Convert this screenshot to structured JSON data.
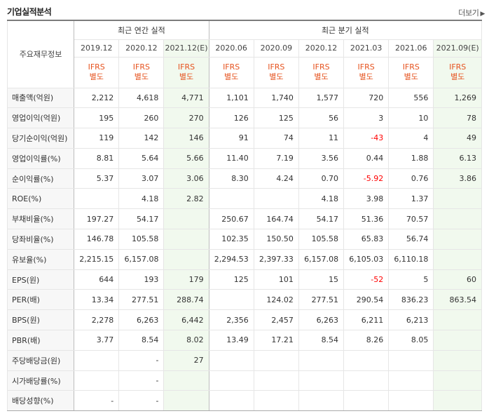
{
  "header": {
    "title": "기업실적분석",
    "more_label": "더보기",
    "more_arrow": "▶"
  },
  "table": {
    "label_header": "주요재무정보",
    "annual_group": "최근 연간 실적",
    "quarter_group": "최근 분기 실적",
    "annual_periods": [
      "2019.12",
      "2020.12",
      "2021.12(E)"
    ],
    "quarter_periods": [
      "2020.06",
      "2020.09",
      "2020.12",
      "2021.03",
      "2021.06",
      "2021.09(E)"
    ],
    "ifrs_line1": "IFRS",
    "ifrs_line2": "별도",
    "rows": [
      {
        "label": "매출액(억원)",
        "group_start": true,
        "values": [
          "2,212",
          "4,618",
          "4,771",
          "1,101",
          "1,740",
          "1,577",
          "720",
          "556",
          "1,269"
        ]
      },
      {
        "label": "영업이익(억원)",
        "group_start": false,
        "values": [
          "195",
          "260",
          "270",
          "126",
          "125",
          "56",
          "3",
          "10",
          "78"
        ]
      },
      {
        "label": "당기순이익(억원)",
        "group_start": false,
        "values": [
          "119",
          "142",
          "146",
          "91",
          "74",
          "11",
          "-43",
          "4",
          "49"
        ]
      },
      {
        "label": "영업이익률(%)",
        "group_start": true,
        "values": [
          "8.81",
          "5.64",
          "5.66",
          "11.40",
          "7.19",
          "3.56",
          "0.44",
          "1.88",
          "6.13"
        ]
      },
      {
        "label": "순이익률(%)",
        "group_start": false,
        "values": [
          "5.37",
          "3.07",
          "3.06",
          "8.30",
          "4.24",
          "0.70",
          "-5.92",
          "0.76",
          "3.86"
        ]
      },
      {
        "label": "ROE(%)",
        "group_start": false,
        "values": [
          "",
          "4.18",
          "2.82",
          "",
          "",
          "4.18",
          "3.98",
          "1.37",
          ""
        ]
      },
      {
        "label": "부채비율(%)",
        "group_start": true,
        "values": [
          "197.27",
          "54.17",
          "",
          "250.67",
          "164.74",
          "54.17",
          "51.36",
          "70.57",
          ""
        ]
      },
      {
        "label": "당좌비율(%)",
        "group_start": false,
        "values": [
          "146.78",
          "105.58",
          "",
          "102.35",
          "150.50",
          "105.58",
          "65.83",
          "56.74",
          ""
        ]
      },
      {
        "label": "유보율(%)",
        "group_start": false,
        "values": [
          "2,215.15",
          "6,157.08",
          "",
          "2,294.53",
          "2,397.33",
          "6,157.08",
          "6,105.03",
          "6,110.18",
          ""
        ]
      },
      {
        "label": "EPS(원)",
        "group_start": true,
        "values": [
          "644",
          "193",
          "179",
          "125",
          "101",
          "15",
          "-52",
          "5",
          "60"
        ]
      },
      {
        "label": "PER(배)",
        "group_start": false,
        "values": [
          "13.34",
          "277.51",
          "288.74",
          "",
          "124.02",
          "277.51",
          "290.54",
          "836.23",
          "863.54"
        ]
      },
      {
        "label": "BPS(원)",
        "group_start": false,
        "values": [
          "2,278",
          "6,263",
          "6,442",
          "2,356",
          "2,457",
          "6,263",
          "6,211",
          "6,213",
          ""
        ]
      },
      {
        "label": "PBR(배)",
        "group_start": false,
        "values": [
          "3.77",
          "8.54",
          "8.02",
          "13.49",
          "17.21",
          "8.54",
          "8.26",
          "8.05",
          ""
        ]
      },
      {
        "label": "주당배당금(원)",
        "group_start": true,
        "values": [
          "",
          "-",
          "27",
          "",
          "",
          "",
          "",
          "",
          ""
        ]
      },
      {
        "label": "시가배당률(%)",
        "group_start": false,
        "values": [
          "",
          "-",
          "",
          "",
          "",
          "",
          "",
          "",
          ""
        ]
      },
      {
        "label": "배당성향(%)",
        "group_start": false,
        "values": [
          "-",
          "-",
          "",
          "",
          "",
          "",
          "",
          "",
          ""
        ]
      }
    ]
  },
  "colors": {
    "estimate_bg": "#f1f9ee",
    "ifrs_text": "#e6531f",
    "negative_text": "#ff0000"
  }
}
